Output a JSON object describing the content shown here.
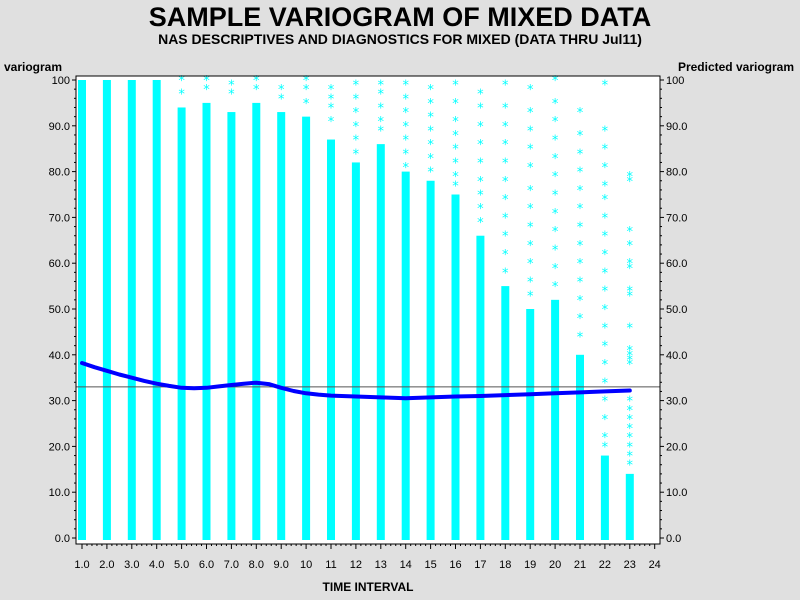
{
  "chart_data": {
    "type": "scatter",
    "title": "SAMPLE VARIOGRAM OF MIXED DATA",
    "subtitle": "NAS DESCRIPTIVES AND DIAGNOSTICS FOR MIXED (DATA THRU Jul11)",
    "xlabel": "TIME INTERVAL",
    "ylabel_left": "variogram",
    "ylabel_right": "Predicted variogram",
    "xlim": [
      0.9,
      24
    ],
    "ylim": [
      0,
      100
    ],
    "x_ticks": [
      "1.0",
      "2.0",
      "3.0",
      "4.0",
      "5.0",
      "6.0",
      "7.0",
      "8.0",
      "9.0",
      "10",
      "11",
      "12",
      "13",
      "14",
      "15",
      "16",
      "17",
      "18",
      "19",
      "20",
      "21",
      "22",
      "23",
      "24"
    ],
    "y_ticks": [
      "0.0",
      "10.0",
      "20.0",
      "30.0",
      "40.0",
      "50.0",
      "60.0",
      "70.0",
      "80.0",
      "90.0",
      "100"
    ],
    "reference_line": 33,
    "scatter_color": "#00ffff",
    "smooth_color": "#0000ff",
    "scatter_series": {
      "marker": "*",
      "columns": [
        {
          "x": 1,
          "solid_max": 100
        },
        {
          "x": 2,
          "solid_max": 100
        },
        {
          "x": 3,
          "solid_max": 100
        },
        {
          "x": 4,
          "solid_max": 100
        },
        {
          "x": 5,
          "solid_max": 94
        },
        {
          "x": 6,
          "solid_max": 95
        },
        {
          "x": 7,
          "solid_max": 93
        },
        {
          "x": 8,
          "solid_max": 95
        },
        {
          "x": 9,
          "solid_max": 93
        },
        {
          "x": 10,
          "solid_max": 92
        },
        {
          "x": 11,
          "solid_max": 87
        },
        {
          "x": 12,
          "solid_max": 82
        },
        {
          "x": 13,
          "solid_max": 86
        },
        {
          "x": 14,
          "solid_max": 80
        },
        {
          "x": 15,
          "solid_max": 78
        },
        {
          "x": 16,
          "solid_max": 75
        },
        {
          "x": 17,
          "solid_max": 66
        },
        {
          "x": 18,
          "solid_max": 55
        },
        {
          "x": 19,
          "solid_max": 50
        },
        {
          "x": 20,
          "solid_max": 52
        },
        {
          "x": 21,
          "solid_max": 40
        },
        {
          "x": 22,
          "solid_max": 18
        },
        {
          "x": 23,
          "solid_max": 14
        }
      ],
      "outliers": [
        {
          "x": 5,
          "y": [
            100,
            97
          ]
        },
        {
          "x": 6,
          "y": [
            100,
            98
          ]
        },
        {
          "x": 7,
          "y": [
            99,
            97
          ]
        },
        {
          "x": 8,
          "y": [
            100,
            98
          ]
        },
        {
          "x": 9,
          "y": [
            98,
            96
          ]
        },
        {
          "x": 10,
          "y": [
            100,
            98,
            95
          ]
        },
        {
          "x": 11,
          "y": [
            98,
            96,
            94,
            91
          ]
        },
        {
          "x": 12,
          "y": [
            99,
            96,
            93,
            90,
            87,
            84
          ]
        },
        {
          "x": 13,
          "y": [
            99,
            97,
            94,
            91,
            89
          ]
        },
        {
          "x": 14,
          "y": [
            99,
            96,
            93,
            90,
            87,
            84,
            81
          ]
        },
        {
          "x": 15,
          "y": [
            98,
            95,
            92,
            89,
            86,
            83,
            80
          ]
        },
        {
          "x": 16,
          "y": [
            99,
            95,
            91,
            88,
            85,
            82,
            79,
            77
          ]
        },
        {
          "x": 17,
          "y": [
            97,
            94,
            90,
            86,
            82,
            78,
            75,
            72,
            69
          ]
        },
        {
          "x": 18,
          "y": [
            99,
            94,
            90,
            86,
            82,
            78,
            74,
            70,
            66,
            62,
            58
          ]
        },
        {
          "x": 19,
          "y": [
            98,
            93,
            89,
            85,
            81,
            76,
            72,
            68,
            64,
            60,
            56,
            53
          ]
        },
        {
          "x": 20,
          "y": [
            100,
            95,
            91,
            87,
            83,
            79,
            75,
            71,
            67,
            63,
            59,
            55
          ]
        },
        {
          "x": 21,
          "y": [
            93,
            88,
            84,
            80,
            76,
            72,
            68,
            64,
            60,
            56,
            52,
            48,
            44
          ]
        },
        {
          "x": 22,
          "y": [
            99,
            89,
            85,
            81,
            77,
            74,
            70,
            66,
            62,
            58,
            54,
            50,
            46,
            42,
            38,
            34,
            30,
            26,
            22,
            20
          ]
        },
        {
          "x": 23,
          "y": [
            79,
            78,
            67,
            64,
            60,
            59,
            54,
            53,
            46,
            41,
            40,
            39,
            38,
            30,
            28,
            26,
            24,
            22,
            20,
            18,
            16
          ]
        }
      ]
    },
    "smooth_series": {
      "x": [
        1,
        1.5,
        2,
        2.5,
        3,
        3.5,
        4,
        4.5,
        5,
        5.5,
        6,
        6.5,
        7,
        7.5,
        8,
        8.5,
        9,
        9.5,
        10,
        10.5,
        11,
        12,
        13,
        14,
        15,
        16,
        17,
        18,
        19,
        20,
        21,
        22,
        23
      ],
      "y": [
        38.2,
        37.3,
        36.5,
        35.7,
        35.0,
        34.3,
        33.7,
        33.2,
        32.8,
        32.7,
        32.8,
        33.1,
        33.4,
        33.7,
        33.9,
        33.6,
        32.8,
        32.1,
        31.6,
        31.3,
        31.1,
        30.9,
        30.7,
        30.5,
        30.7,
        30.9,
        31.0,
        31.2,
        31.4,
        31.6,
        31.8,
        32.0,
        32.2
      ]
    }
  }
}
